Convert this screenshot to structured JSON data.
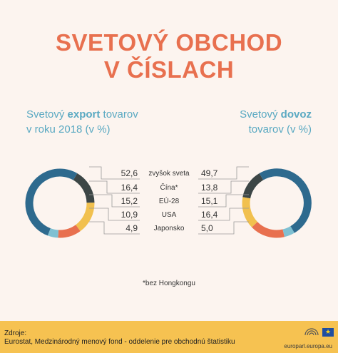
{
  "title_line1": "SVETOVÝ OBCHOD",
  "title_line2": "V ČÍSLACH",
  "left_subtitle": {
    "prefix": "Svetový ",
    "bold": "export",
    "suffix": " tovarov",
    "line2": "v roku 2018 (v %)"
  },
  "right_subtitle": {
    "prefix": "Svetový ",
    "bold": "dovoz",
    "line2": "tovarov (v %)"
  },
  "chart_data": [
    {
      "type": "pie",
      "title": "Svetový export tovarov v roku 2018 (v %)",
      "categories": [
        "zvyšok sveta",
        "Čína*",
        "EÚ-28",
        "USA",
        "Japonsko"
      ],
      "values": [
        52.6,
        16.4,
        15.2,
        10.9,
        4.9
      ],
      "labels": [
        "52,6",
        "16,4",
        "15,2",
        "10,9",
        "4,9"
      ]
    },
    {
      "type": "pie",
      "title": "Svetový dovoz tovarov (v %)",
      "categories": [
        "zvyšok sveta",
        "Čína*",
        "EÚ-28",
        "USA",
        "Japonsko"
      ],
      "values": [
        49.7,
        13.8,
        15.1,
        16.4,
        5.0
      ],
      "labels": [
        "49,7",
        "13,8",
        "15,1",
        "16,4",
        "5,0"
      ]
    }
  ],
  "colors": {
    "zvyšok sveta": "#2e6a8e",
    "Čína*": "#3c4646",
    "EÚ-28": "#f1c04e",
    "USA": "#e8704f",
    "Japonsko": "#7fc0d2"
  },
  "footnote": "*bez Hongkongu",
  "source_label": "Zdroje:",
  "source_text": "Eurostat, Medzinárodný menový fond - oddelenie pre obchodnú štatistiku",
  "site": "europarl.europa.eu",
  "icons": [
    "parliament-hemicycle-icon",
    "eu-flag-icon"
  ]
}
